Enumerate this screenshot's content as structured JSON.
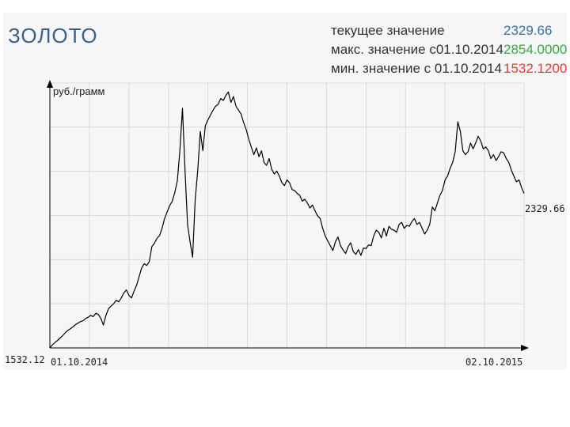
{
  "title": "ЗОЛОТО",
  "stats": {
    "current_label": "текущее значение",
    "current_value": "2329.66",
    "max_label": "макс. значение с01.10.2014",
    "max_value": "2854.0000",
    "min_label": "мин. значение с  01.10.2014",
    "min_value": "1532.1200"
  },
  "colors": {
    "current": "#3d6fa8",
    "max": "#3aa842",
    "min": "#e0383b",
    "title": "#3a5f8a",
    "line": "#000000"
  },
  "chart_data": {
    "type": "line",
    "ylabel": "руб./грамм",
    "xlabel": "",
    "x_start_label": "01.10.2014",
    "x_end_label": "02.10.2015",
    "y_min_label": "1532.12",
    "last_value_label": "2329.66",
    "ylim": [
      1532.12,
      2900
    ],
    "grid": true,
    "series": [
      {
        "values": [
          1532.12,
          1548,
          1560,
          1571,
          1583,
          1595,
          1610,
          1622,
          1631,
          1640,
          1652,
          1660,
          1668,
          1672,
          1684,
          1690,
          1700,
          1694,
          1711,
          1705,
          1685,
          1650,
          1700,
          1735,
          1748,
          1760,
          1778,
          1770,
          1790,
          1816,
          1832,
          1804,
          1790,
          1825,
          1855,
          1900,
          1945,
          1967,
          1958,
          1978,
          2055,
          2072,
          2098,
          2112,
          2150,
          2200,
          2235,
          2267,
          2290,
          2335,
          2395,
          2550,
          2770,
          2450,
          2170,
          2080,
          2000,
          2300,
          2450,
          2650,
          2550,
          2680,
          2710,
          2735,
          2760,
          2780,
          2790,
          2820,
          2810,
          2835,
          2854,
          2800,
          2830,
          2780,
          2760,
          2740,
          2695,
          2660,
          2610,
          2570,
          2530,
          2565,
          2520,
          2550,
          2490,
          2475,
          2510,
          2455,
          2430,
          2445,
          2420,
          2385,
          2370,
          2400,
          2385,
          2350,
          2345,
          2330,
          2320,
          2290,
          2300,
          2280,
          2255,
          2270,
          2240,
          2215,
          2200,
          2150,
          2110,
          2085,
          2060,
          2035,
          2080,
          2105,
          2060,
          2038,
          2020,
          2055,
          2075,
          2030,
          2015,
          2040,
          2010,
          2048,
          2045,
          2064,
          2060,
          2110,
          2140,
          2130,
          2100,
          2150,
          2110,
          2160,
          2145,
          2140,
          2130,
          2170,
          2180,
          2150,
          2165,
          2160,
          2185,
          2200,
          2170,
          2180,
          2150,
          2120,
          2140,
          2170,
          2260,
          2240,
          2280,
          2320,
          2345,
          2400,
          2420,
          2460,
          2490,
          2545,
          2700,
          2650,
          2550,
          2530,
          2545,
          2590,
          2560,
          2590,
          2625,
          2600,
          2560,
          2570,
          2550,
          2510,
          2530,
          2500,
          2520,
          2545,
          2540,
          2510,
          2490,
          2450,
          2420,
          2390,
          2400,
          2360,
          2329.66
        ]
      }
    ]
  }
}
